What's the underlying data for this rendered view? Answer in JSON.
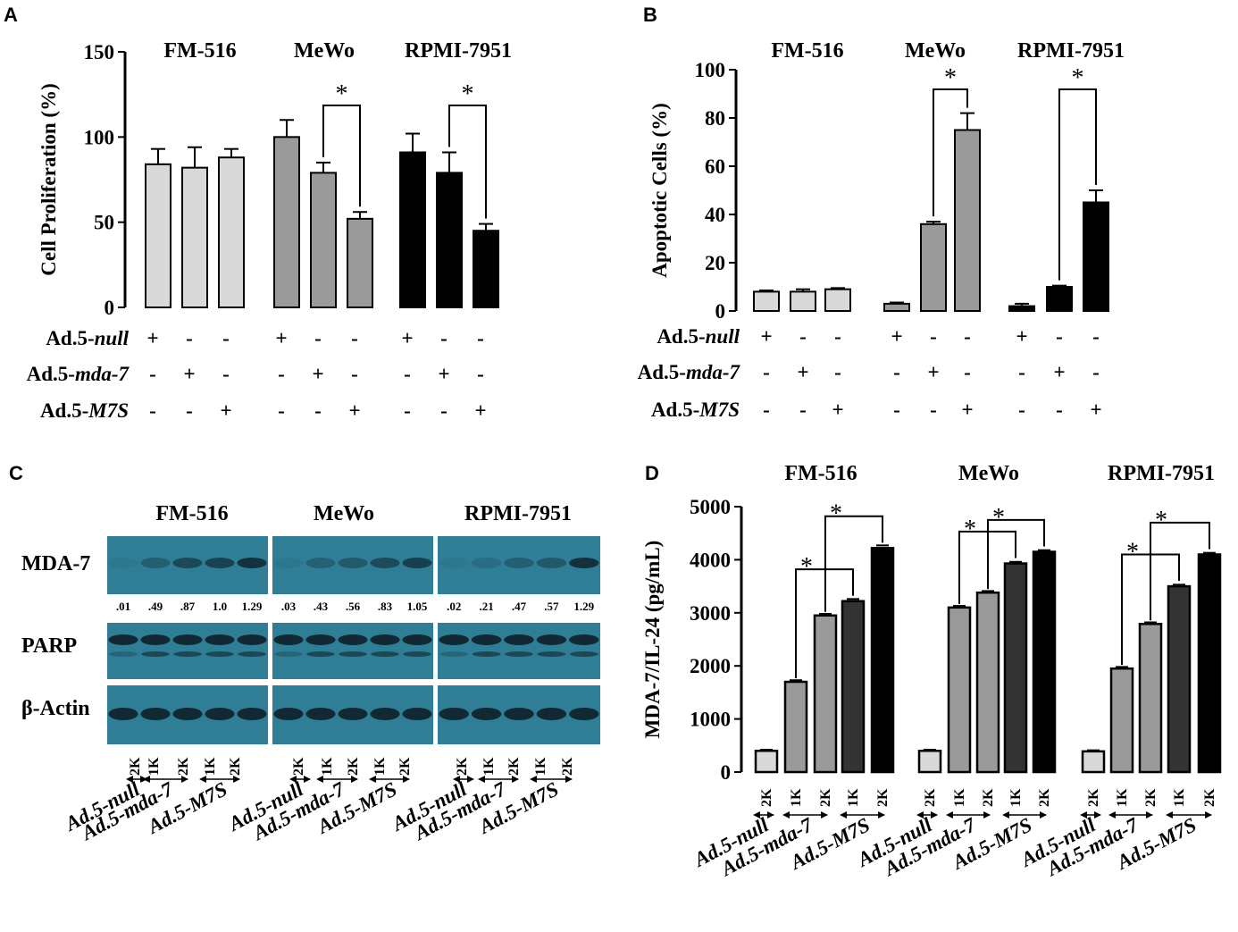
{
  "figure": {
    "panels": [
      "A",
      "B",
      "C",
      "D"
    ]
  },
  "colors": {
    "light": "#d9d9d9",
    "mid": "#9a9a9a",
    "dark": "#5c5c5c",
    "darker": "#333333",
    "black": "#000000",
    "blot": "#2f7e96"
  },
  "conditions": {
    "labels": [
      "Ad.5-null",
      "Ad.5-mda-7",
      "Ad.5-M7S"
    ],
    "label_parts": [
      {
        "plain": "Ad.5-",
        "italic": "null"
      },
      {
        "plain": "Ad.5-",
        "italic": "mda-7"
      },
      {
        "plain": "Ad.5-",
        "italic": "M7S"
      }
    ],
    "matrix": [
      [
        "+",
        "-",
        "-"
      ],
      [
        "-",
        "+",
        "-"
      ],
      [
        "-",
        "-",
        "+"
      ]
    ],
    "plus": "+",
    "minus": "-"
  },
  "chart_data": [
    {
      "panel": "A",
      "type": "bar",
      "ylabel": "Cell Proliferation (%)",
      "ylim": [
        0,
        150
      ],
      "yticks": [
        0,
        50,
        100,
        150
      ],
      "groups": [
        "FM-516",
        "MeWo",
        "RPMI-7951"
      ],
      "categories": [
        "Ad.5-null",
        "Ad.5-mda-7",
        "Ad.5-M7S"
      ],
      "series": [
        {
          "name": "FM-516",
          "values": [
            84,
            82,
            88
          ],
          "errors": [
            9,
            12,
            5
          ]
        },
        {
          "name": "MeWo",
          "values": [
            100,
            79,
            52
          ],
          "errors": [
            10,
            6,
            4
          ]
        },
        {
          "name": "RPMI-7951",
          "values": [
            91,
            79,
            45
          ],
          "errors": [
            11,
            12,
            4
          ]
        }
      ],
      "significance": [
        {
          "group": 1,
          "from": 1,
          "to": 2,
          "label": "*"
        },
        {
          "group": 2,
          "from": 1,
          "to": 2,
          "label": "*"
        }
      ]
    },
    {
      "panel": "B",
      "type": "bar",
      "ylabel": "Apoptotic Cells (%)",
      "ylim": [
        0,
        100
      ],
      "yticks": [
        0,
        20,
        40,
        60,
        80,
        100
      ],
      "groups": [
        "FM-516",
        "MeWo",
        "RPMI-7951"
      ],
      "categories": [
        "Ad.5-null",
        "Ad.5-mda-7",
        "Ad.5-M7S"
      ],
      "series": [
        {
          "name": "FM-516",
          "values": [
            8,
            8,
            9
          ],
          "errors": [
            0.5,
            1,
            0.5
          ]
        },
        {
          "name": "MeWo",
          "values": [
            3,
            36,
            75
          ],
          "errors": [
            0.5,
            1,
            7
          ]
        },
        {
          "name": "RPMI-7951",
          "values": [
            2,
            10,
            45
          ],
          "errors": [
            1,
            0.5,
            5
          ]
        }
      ],
      "significance": [
        {
          "group": 1,
          "from": 1,
          "to": 2,
          "label": "*"
        },
        {
          "group": 2,
          "from": 1,
          "to": 2,
          "label": "*"
        }
      ]
    },
    {
      "panel": "D",
      "type": "bar",
      "ylabel": "MDA-7/IL-24 (pg/mL)",
      "ylim": [
        0,
        5000
      ],
      "yticks": [
        0,
        1000,
        2000,
        3000,
        4000,
        5000
      ],
      "groups": [
        "FM-516",
        "MeWo",
        "RPMI-7951"
      ],
      "categories": [
        "Ad.5-null 2K",
        "Ad.5-mda-7 1K",
        "Ad.5-mda-7 2K",
        "Ad.5-M7S 1K",
        "Ad.5-M7S 2K"
      ],
      "dose_labels": [
        "2K",
        "1K",
        "2K",
        "1K",
        "2K"
      ],
      "series": [
        {
          "name": "FM-516",
          "values": [
            400,
            1700,
            2950,
            3220,
            4220
          ],
          "errors": [
            20,
            30,
            30,
            40,
            50
          ]
        },
        {
          "name": "MeWo",
          "values": [
            400,
            3100,
            3380,
            3930,
            4150
          ],
          "errors": [
            20,
            30,
            30,
            30,
            30
          ]
        },
        {
          "name": "RPMI-7951",
          "values": [
            390,
            1950,
            2790,
            3500,
            4100
          ],
          "errors": [
            20,
            30,
            30,
            30,
            30
          ]
        }
      ],
      "significance": [
        {
          "group": 0,
          "from": 1,
          "to": 3,
          "label": "*"
        },
        {
          "group": 0,
          "from": 2,
          "to": 4,
          "label": "*"
        },
        {
          "group": 1,
          "from": 1,
          "to": 3,
          "label": "*"
        },
        {
          "group": 1,
          "from": 2,
          "to": 4,
          "label": "*"
        },
        {
          "group": 2,
          "from": 1,
          "to": 3,
          "label": "*"
        },
        {
          "group": 2,
          "from": 2,
          "to": 4,
          "label": "*"
        }
      ]
    }
  ],
  "blot": {
    "panel": "C",
    "groups": [
      "FM-516",
      "MeWo",
      "RPMI-7951"
    ],
    "rows": [
      "MDA-7",
      "PARP",
      "β-Actin"
    ],
    "mda7_quant": [
      [
        ".01",
        ".49",
        ".87",
        "1.0",
        "1.29"
      ],
      [
        ".03",
        ".43",
        ".56",
        ".83",
        "1.05"
      ],
      [
        ".02",
        ".21",
        ".47",
        ".57",
        "1.29"
      ]
    ],
    "lane_doses": [
      "2K",
      "1K",
      "2K",
      "1K",
      "2K"
    ],
    "conditions": [
      "Ad.5-null",
      "Ad.5-mda-7",
      "Ad.5-M7S"
    ]
  }
}
